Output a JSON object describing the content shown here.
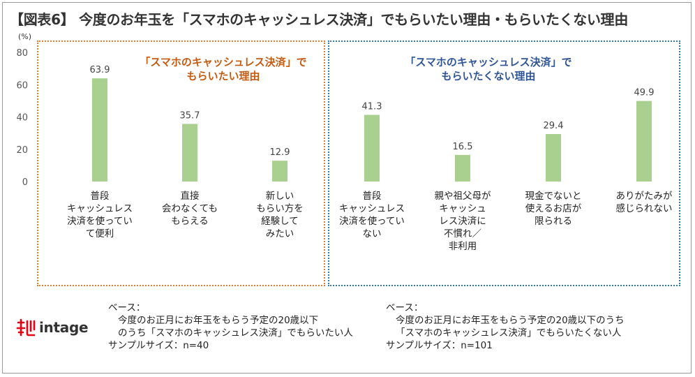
{
  "title": "【図表6】 今度のお年玉を「スマホのキャッシュレス決済」でもらいたい理由・もらいたくない理由",
  "unit": "(%)",
  "groups": {
    "left_title": "「スマホのキャッシュレス決済」で\nもらいたい理由",
    "right_title": "「スマホのキャッシュレス決済」で\nもらいたくない理由"
  },
  "chart_data": {
    "type": "bar",
    "categories": [
      "普段\nキャッシュレス\n決済を使ってい\nて便利",
      "直接\n会わなくても\nもらえる",
      "新しい\nもらい方を\n経験して\nみたい",
      "普段\nキャッシュレス\n決済を使ってい\nない",
      "親や祖父母が\nキャッシュ\nレス決済に\n不慣れ／\n非利用",
      "現金でないと\n使えるお店が\n限られる",
      "ありがたみが\n感じられない"
    ],
    "values": [
      63.9,
      35.7,
      12.9,
      41.3,
      16.5,
      29.4,
      49.9
    ],
    "value_labels": [
      "63.9",
      "35.7",
      "12.9",
      "41.3",
      "16.5",
      "29.4",
      "49.9"
    ],
    "ylim": [
      0,
      80
    ],
    "yticks": [
      "0",
      "20",
      "40",
      "60",
      "80"
    ],
    "bar_color": "#a9d08e",
    "grid": false
  },
  "base": {
    "left": {
      "label": "ベース：",
      "line1": "今度のお正月にお年玉をもらう予定の20歳以下",
      "line2": "のうち「スマホのキャッシュレス決済」でもらいたい人",
      "sample": "サンプルサイズ：n=40"
    },
    "right": {
      "label": "ベース：",
      "line1": "今度のお正月にお年玉をもらう予定の20歳以下のうち",
      "line2": "「スマホのキャッシュレス決済」でもらいたくない人",
      "sample": "サンプルサイズ：n=101"
    }
  },
  "logo": {
    "text": "intage",
    "mark_color": "#e60012"
  }
}
